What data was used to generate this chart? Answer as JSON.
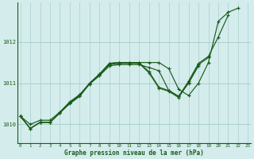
{
  "title": "Graphe pression niveau de la mer (hPa)",
  "background_color": "#d4ecec",
  "grid_color": "#aacfcf",
  "line_color": "#1a5c1a",
  "x_ticks": [
    0,
    1,
    2,
    3,
    4,
    5,
    6,
    7,
    8,
    9,
    10,
    11,
    12,
    13,
    14,
    15,
    16,
    17,
    18,
    19,
    20,
    21,
    22,
    23
  ],
  "y_ticks": [
    1010,
    1011,
    1012
  ],
  "ylim": [
    1009.55,
    1012.95
  ],
  "xlim": [
    -0.3,
    23.3
  ],
  "y1": [
    1010.2,
    1009.9,
    1010.05,
    1010.05,
    1010.28,
    1010.52,
    1010.72,
    1011.0,
    1011.22,
    1011.48,
    1011.5,
    1011.5,
    1011.5,
    1011.5,
    1011.5,
    1011.35,
    1010.85,
    1010.7,
    1011.0,
    1011.5,
    1012.5,
    1012.72,
    1012.82,
    null
  ],
  "y2": [
    1010.2,
    1009.9,
    1010.05,
    1010.05,
    1010.28,
    1010.52,
    1010.7,
    1011.0,
    1011.22,
    1011.48,
    1011.5,
    1011.5,
    1011.5,
    1011.28,
    1010.9,
    1010.82,
    1010.68,
    1011.05,
    1011.48,
    1011.65,
    1012.12,
    1012.65,
    null,
    null
  ],
  "y3": [
    1010.2,
    1009.9,
    1010.05,
    1010.05,
    1010.28,
    1010.5,
    1010.68,
    1010.98,
    1011.2,
    1011.45,
    1011.48,
    1011.48,
    1011.48,
    1011.25,
    1010.88,
    1010.8,
    1010.65,
    1011.02,
    1011.45,
    1011.62,
    null,
    null,
    null,
    null
  ],
  "y4": [
    1010.2,
    1010.0,
    1010.1,
    1010.1,
    1010.3,
    1010.55,
    1010.72,
    1010.98,
    1011.18,
    1011.42,
    1011.45,
    1011.45,
    1011.45,
    1011.38,
    1011.3,
    1010.82,
    1010.68,
    1011.0,
    1011.42,
    null,
    null,
    null,
    null,
    null
  ]
}
